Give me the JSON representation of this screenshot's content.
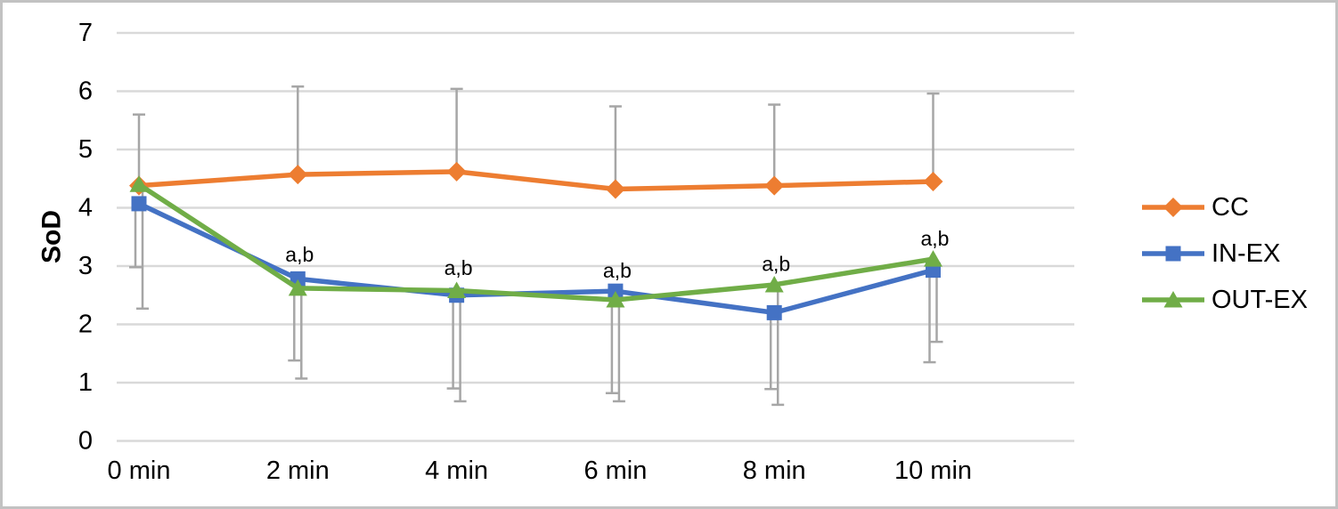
{
  "figure": {
    "background": "#ffffff",
    "border_color": "#c2c2c2"
  },
  "chart_data": {
    "type": "line",
    "title": "",
    "xlabel": "",
    "ylabel": "SoD",
    "ylim": [
      0,
      7
    ],
    "yticks": [
      0,
      1,
      2,
      3,
      4,
      5,
      6,
      7
    ],
    "grid": "horizontal",
    "gridline_color": "#d9d9d9",
    "errorbar_color": "#a6a6a6",
    "text_color": "#000000",
    "legend_position": "right",
    "categories": [
      "0 min",
      "2 min",
      "4 min",
      "6 min",
      "8 min",
      "10 min"
    ],
    "series": [
      {
        "name": "CC",
        "color": "#ED7D31",
        "marker": "diamond",
        "values": [
          4.38,
          4.57,
          4.62,
          4.32,
          4.38,
          4.45
        ],
        "error_up_to": [
          5.6,
          6.08,
          6.04,
          5.74,
          5.77,
          5.96
        ]
      },
      {
        "name": "IN-EX",
        "color": "#4472C4",
        "marker": "square",
        "values": [
          4.07,
          2.78,
          2.5,
          2.57,
          2.2,
          2.93
        ],
        "error_down_to": [
          2.98,
          1.38,
          0.9,
          0.82,
          0.89,
          1.35
        ]
      },
      {
        "name": "OUT-EX",
        "color": "#70AD47",
        "marker": "triangle",
        "values": [
          4.4,
          2.62,
          2.58,
          2.42,
          2.68,
          3.12
        ],
        "error_down_to": [
          2.27,
          1.07,
          0.68,
          0.68,
          0.62,
          1.7
        ]
      }
    ],
    "annotations": [
      {
        "label": "a,b",
        "category_index": 1,
        "y": 3.2
      },
      {
        "label": "a,b",
        "category_index": 2,
        "y": 2.97
      },
      {
        "label": "a,b",
        "category_index": 3,
        "y": 2.92
      },
      {
        "label": "a,b",
        "category_index": 4,
        "y": 3.04
      },
      {
        "label": "a,b",
        "category_index": 5,
        "y": 3.47
      }
    ]
  }
}
